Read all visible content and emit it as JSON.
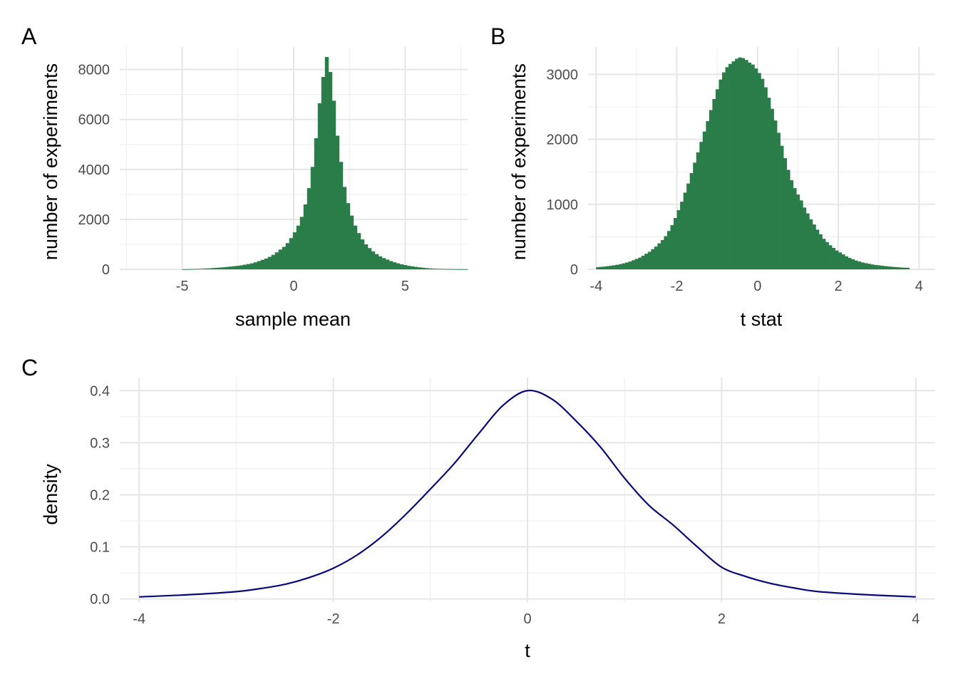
{
  "colors": {
    "bar_fill": "#2a7d48",
    "line_color": "#08087a",
    "grid_major": "#e6e6e6",
    "grid_minor": "#f0f0f0"
  },
  "chart_data": [
    {
      "panel": "A",
      "type": "bar",
      "xlabel": "sample mean",
      "ylabel": "number of experiments",
      "xlim": [
        -7.8,
        7.8
      ],
      "ylim": [
        0,
        8900
      ],
      "xticks": [
        -5,
        0,
        5
      ],
      "xtick_labels": [
        "-5",
        "0",
        "5"
      ],
      "yticks": [
        0,
        2000,
        4000,
        6000,
        8000
      ],
      "ytick_labels": [
        "0",
        "2000",
        "4000",
        "6000",
        "8000"
      ],
      "grid": true,
      "bins": {
        "start": -5.0,
        "width": 0.16
      },
      "values": [
        5,
        5,
        10,
        15,
        20,
        25,
        35,
        40,
        50,
        60,
        70,
        80,
        95,
        110,
        125,
        140,
        160,
        185,
        210,
        240,
        280,
        330,
        380,
        430,
        500,
        580,
        680,
        790,
        900,
        1050,
        1250,
        1480,
        1750,
        2100,
        2600,
        3250,
        4100,
        5250,
        6650,
        7700,
        8500,
        7900,
        6750,
        5350,
        4300,
        3300,
        2650,
        2150,
        1750,
        1450,
        1200,
        1000,
        850,
        720,
        610,
        520,
        450,
        390,
        330,
        280,
        240,
        200,
        170,
        140,
        120,
        100,
        80,
        65,
        50,
        40,
        30,
        25,
        20,
        15,
        10,
        10,
        5,
        5,
        5,
        5
      ]
    },
    {
      "panel": "B",
      "type": "bar",
      "xlabel": "t stat",
      "ylabel": "number of experiments",
      "xlim": [
        -4.2,
        4.4
      ],
      "ylim": [
        0,
        3420
      ],
      "xticks": [
        -4,
        -2,
        0,
        2,
        4
      ],
      "xtick_labels": [
        "-4",
        "-2",
        "0",
        "2",
        "4"
      ],
      "yticks": [
        0,
        1000,
        2000,
        3000
      ],
      "ytick_labels": [
        "0",
        "1000",
        "2000",
        "3000"
      ],
      "grid": true,
      "bins": {
        "start": -4.0,
        "width": 0.08
      },
      "values": [
        35,
        38,
        42,
        48,
        55,
        62,
        70,
        80,
        92,
        105,
        120,
        140,
        160,
        180,
        210,
        240,
        270,
        310,
        350,
        400,
        450,
        510,
        590,
        680,
        790,
        910,
        1040,
        1180,
        1320,
        1480,
        1640,
        1800,
        1960,
        2120,
        2280,
        2450,
        2620,
        2770,
        2920,
        3030,
        3110,
        3160,
        3200,
        3240,
        3260,
        3250,
        3220,
        3180,
        3150,
        3090,
        3020,
        2930,
        2800,
        2640,
        2470,
        2290,
        2100,
        1900,
        1710,
        1530,
        1370,
        1250,
        1150,
        1060,
        950,
        860,
        770,
        690,
        610,
        540,
        470,
        420,
        370,
        330,
        290,
        260,
        230,
        200,
        175,
        155,
        135,
        120,
        105,
        95,
        85,
        75,
        68,
        62,
        56,
        50,
        45,
        40,
        36,
        32,
        28,
        26,
        24
      ]
    },
    {
      "panel": "C",
      "type": "line",
      "xlabel": "t",
      "ylabel": "density",
      "xlim": [
        -4.2,
        4.2
      ],
      "ylim": [
        -0.006,
        0.425
      ],
      "xticks": [
        -4,
        -2,
        0,
        2,
        4
      ],
      "xtick_labels": [
        "-4",
        "-2",
        "0",
        "2",
        "4"
      ],
      "yticks": [
        0,
        0.1,
        0.2,
        0.3,
        0.4
      ],
      "ytick_labels": [
        "0.0",
        "0.1",
        "0.2",
        "0.3",
        "0.4"
      ],
      "grid": true,
      "x": [
        -4,
        -3.5,
        -3,
        -2.75,
        -2.5,
        -2.25,
        -2,
        -1.75,
        -1.5,
        -1.25,
        -1,
        -0.75,
        -0.5,
        -0.25,
        0,
        0.25,
        0.5,
        0.75,
        1,
        1.25,
        1.5,
        1.75,
        2,
        2.25,
        2.5,
        2.75,
        3,
        3.5,
        4
      ],
      "y": [
        0.004,
        0.008,
        0.014,
        0.02,
        0.028,
        0.041,
        0.059,
        0.085,
        0.12,
        0.163,
        0.211,
        0.261,
        0.318,
        0.372,
        0.4,
        0.384,
        0.342,
        0.292,
        0.232,
        0.18,
        0.142,
        0.1,
        0.061,
        0.043,
        0.03,
        0.021,
        0.014,
        0.008,
        0.004
      ]
    }
  ]
}
